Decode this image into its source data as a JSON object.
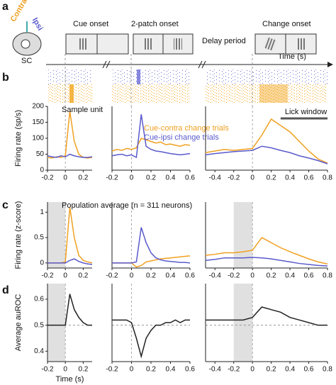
{
  "figure": {
    "panel_labels": [
      "a",
      "b",
      "c",
      "d"
    ],
    "task": {
      "contra": "Contra",
      "ipsi": "Ipsi",
      "sc": "SC",
      "cue": "Cue onset",
      "patch": "2-patch onset",
      "delay": "Delay period",
      "change": "Change onset",
      "time": "Time (s)"
    }
  },
  "chart_data": [
    {
      "type": "line",
      "ylabel": "Firing rate (sp/s)",
      "annotation": "Sample unit",
      "xlim": [
        -0.2,
        0.3
      ],
      "xticks": [
        -0.2,
        0,
        0.2
      ],
      "ylim": [
        0,
        200
      ],
      "yticks": [
        0,
        50,
        100,
        150,
        200
      ],
      "x": [
        -0.2,
        -0.15,
        -0.1,
        -0.05,
        0,
        0.05,
        0.1,
        0.15,
        0.2,
        0.25,
        0.3
      ],
      "series": [
        {
          "color": "#f0a020",
          "values": [
            40,
            38,
            42,
            40,
            45,
            185,
            90,
            50,
            40,
            38,
            40
          ]
        },
        {
          "color": "#5a5acc",
          "values": [
            45,
            42,
            40,
            45,
            42,
            50,
            45,
            42,
            40,
            40,
            42
          ]
        }
      ]
    },
    {
      "type": "line",
      "xlim": [
        -0.2,
        0.6
      ],
      "xticks": [
        -0.2,
        0,
        0.2,
        0.4,
        0.6
      ],
      "ylim": [
        0,
        200
      ],
      "x": [
        -0.2,
        -0.15,
        -0.1,
        -0.05,
        0,
        0.05,
        0.1,
        0.15,
        0.2,
        0.25,
        0.3,
        0.35,
        0.4,
        0.45,
        0.5,
        0.55,
        0.6
      ],
      "series": [
        {
          "name": "Cue-contra change trials",
          "color": "#f0a020",
          "values": [
            60,
            65,
            62,
            68,
            65,
            70,
            100,
            95,
            90,
            85,
            88,
            80,
            82,
            78,
            75,
            80,
            78
          ]
        },
        {
          "name": "Cue-ipsi change trials",
          "color": "#5a5acc",
          "values": [
            45,
            48,
            50,
            45,
            48,
            40,
            175,
            75,
            65,
            60,
            58,
            55,
            52,
            50,
            48,
            50,
            52
          ]
        }
      ]
    },
    {
      "type": "line",
      "annotation": "Lick window",
      "lick_window": [
        0.3,
        0.8
      ],
      "xlim": [
        -0.5,
        0.8
      ],
      "xticks": [
        -0.4,
        -0.2,
        0,
        0.2,
        0.4,
        0.6,
        0.8
      ],
      "ylim": [
        0,
        200
      ],
      "x": [
        -0.5,
        -0.4,
        -0.3,
        -0.2,
        -0.1,
        0,
        0.1,
        0.2,
        0.3,
        0.4,
        0.5,
        0.6,
        0.7,
        0.8
      ],
      "series": [
        {
          "color": "#f0a020",
          "values": [
            55,
            60,
            65,
            62,
            65,
            68,
            110,
            160,
            140,
            120,
            90,
            60,
            35,
            22
          ]
        },
        {
          "color": "#5a5acc",
          "values": [
            48,
            52,
            55,
            58,
            60,
            62,
            75,
            70,
            62,
            55,
            45,
            38,
            30,
            20
          ]
        }
      ]
    },
    {
      "type": "line",
      "ylabel": "Firing rate (z-score)",
      "annotation": "Population average (n = 311 neurons)",
      "shade": [
        -0.2,
        0
      ],
      "xlim": [
        -0.2,
        0.3
      ],
      "xticks": [
        -0.2,
        0,
        0.2
      ],
      "ylim": [
        -0.1,
        1.2
      ],
      "yticks": [
        0,
        0.5,
        1
      ],
      "x": [
        -0.2,
        -0.15,
        -0.1,
        -0.05,
        0,
        0.05,
        0.1,
        0.15,
        0.2,
        0.25,
        0.3
      ],
      "series": [
        {
          "color": "#f0a020",
          "values": [
            0,
            0,
            0,
            0,
            0.02,
            1.1,
            0.5,
            0.15,
            0.05,
            0.02,
            0
          ]
        },
        {
          "color": "#5a5acc",
          "values": [
            0,
            0,
            0,
            0,
            0,
            0.05,
            0.08,
            0.03,
            0,
            -0.02,
            -0.03
          ]
        }
      ]
    },
    {
      "type": "line",
      "xlim": [
        -0.2,
        0.6
      ],
      "xticks": [
        -0.2,
        0,
        0.2,
        0.4,
        0.6
      ],
      "ylim": [
        -0.1,
        1.2
      ],
      "x": [
        -0.2,
        -0.15,
        -0.1,
        -0.05,
        0,
        0.05,
        0.1,
        0.15,
        0.2,
        0.25,
        0.3,
        0.35,
        0.4,
        0.45,
        0.5,
        0.55,
        0.6
      ],
      "series": [
        {
          "color": "#f0a020",
          "values": [
            0,
            0,
            0,
            0,
            0,
            -0.08,
            -0.05,
            0.02,
            0.04,
            0.06,
            0.08,
            0.09,
            0.1,
            0.11,
            0.12,
            0.13,
            0.14
          ]
        },
        {
          "color": "#5a5acc",
          "values": [
            0,
            0,
            0,
            0,
            0,
            0.02,
            0.7,
            0.4,
            0.2,
            0.1,
            0.06,
            0.04,
            0.03,
            0.02,
            0.01,
            0.01,
            0
          ]
        }
      ]
    },
    {
      "type": "line",
      "shade": [
        -0.2,
        0
      ],
      "xlim": [
        -0.5,
        0.8
      ],
      "xticks": [
        -0.4,
        -0.2,
        0,
        0.2,
        0.4,
        0.6,
        0.8
      ],
      "ylim": [
        -0.1,
        1.2
      ],
      "x": [
        -0.5,
        -0.4,
        -0.3,
        -0.2,
        -0.1,
        0,
        0.1,
        0.2,
        0.3,
        0.4,
        0.5,
        0.6,
        0.7,
        0.8
      ],
      "series": [
        {
          "color": "#f0a020",
          "values": [
            0.15,
            0.17,
            0.2,
            0.2,
            0.22,
            0.25,
            0.5,
            0.4,
            0.3,
            0.22,
            0.15,
            0.08,
            0.02,
            -0.02
          ]
        },
        {
          "color": "#5a5acc",
          "values": [
            0.05,
            0.07,
            0.1,
            0.1,
            0.1,
            0.11,
            0.1,
            0.08,
            0.05,
            0.02,
            -0.01,
            -0.03,
            -0.05,
            -0.06
          ]
        }
      ]
    },
    {
      "type": "line",
      "ylabel": "Average auROC",
      "xlabel": "Time (s)",
      "shade": [
        -0.2,
        0
      ],
      "reference": 0.5,
      "xlim": [
        -0.2,
        0.3
      ],
      "xticks": [
        -0.2,
        0,
        0.2
      ],
      "ylim": [
        0.36,
        0.66
      ],
      "yticks": [
        0.4,
        0.5,
        0.6
      ],
      "x": [
        -0.2,
        -0.15,
        -0.1,
        -0.05,
        0,
        0.05,
        0.1,
        0.15,
        0.2,
        0.25,
        0.3
      ],
      "series": [
        {
          "color": "#222222",
          "values": [
            0.5,
            0.5,
            0.5,
            0.5,
            0.5,
            0.62,
            0.56,
            0.53,
            0.51,
            0.5,
            0.5
          ]
        }
      ]
    },
    {
      "type": "line",
      "reference": 0.5,
      "xlim": [
        -0.2,
        0.6
      ],
      "xticks": [
        -0.2,
        0,
        0.2,
        0.4,
        0.6
      ],
      "ylim": [
        0.36,
        0.66
      ],
      "x": [
        -0.2,
        -0.15,
        -0.1,
        -0.05,
        0,
        0.05,
        0.1,
        0.15,
        0.2,
        0.25,
        0.3,
        0.35,
        0.4,
        0.45,
        0.5,
        0.55,
        0.6
      ],
      "series": [
        {
          "color": "#222222",
          "values": [
            0.52,
            0.52,
            0.52,
            0.52,
            0.51,
            0.45,
            0.38,
            0.45,
            0.48,
            0.5,
            0.5,
            0.51,
            0.51,
            0.52,
            0.51,
            0.52,
            0.52
          ]
        }
      ]
    },
    {
      "type": "line",
      "shade": [
        -0.2,
        0
      ],
      "reference": 0.5,
      "xlim": [
        -0.5,
        0.8
      ],
      "xticks": [
        -0.4,
        -0.2,
        0,
        0.2,
        0.4,
        0.6,
        0.8
      ],
      "ylim": [
        0.36,
        0.66
      ],
      "x": [
        -0.5,
        -0.4,
        -0.3,
        -0.2,
        -0.1,
        0,
        0.1,
        0.2,
        0.3,
        0.4,
        0.5,
        0.6,
        0.7,
        0.8
      ],
      "series": [
        {
          "color": "#222222",
          "values": [
            0.52,
            0.52,
            0.52,
            0.52,
            0.52,
            0.53,
            0.57,
            0.56,
            0.55,
            0.53,
            0.52,
            0.51,
            0.5,
            0.5
          ]
        }
      ]
    }
  ]
}
